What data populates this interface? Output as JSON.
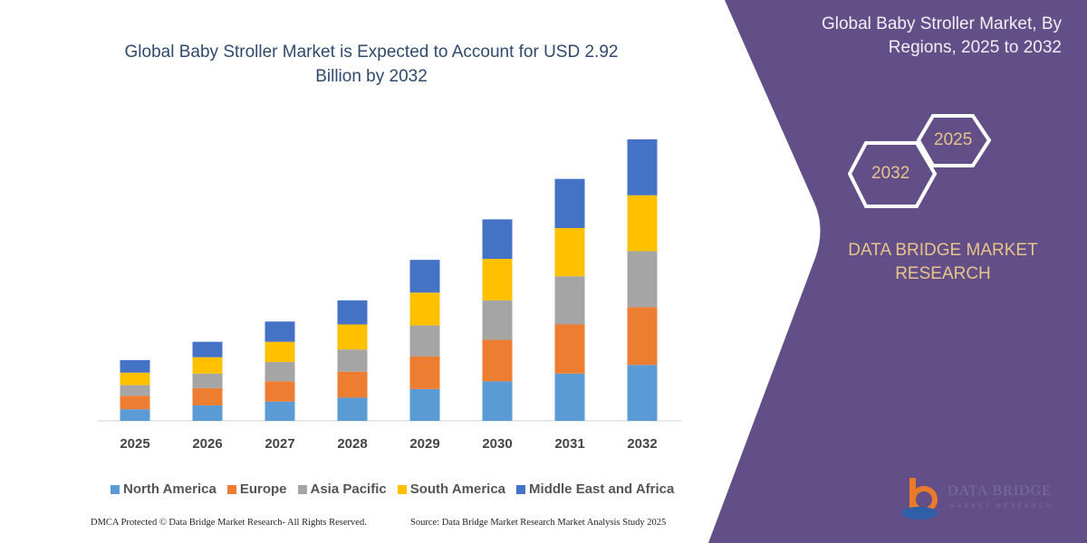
{
  "chart_data": {
    "type": "bar",
    "stacked": true,
    "title": "Global Baby Stroller Market is Expected to Account for USD 2.92 Billion by 2032",
    "xlabel": "",
    "ylabel": "",
    "y_axis_shown": false,
    "grid": false,
    "legend_position": "bottom",
    "categories": [
      "2025",
      "2026",
      "2027",
      "2028",
      "2029",
      "2030",
      "2031",
      "2032"
    ],
    "series": [
      {
        "name": "North America",
        "color": "#5b9bd5",
        "values": [
          0.12,
          0.16,
          0.2,
          0.24,
          0.33,
          0.41,
          0.49,
          0.58
        ]
      },
      {
        "name": "Europe",
        "color": "#ed7d31",
        "values": [
          0.14,
          0.18,
          0.21,
          0.27,
          0.34,
          0.43,
          0.51,
          0.6
        ]
      },
      {
        "name": "Asia Pacific",
        "color": "#a5a5a5",
        "values": [
          0.11,
          0.15,
          0.2,
          0.23,
          0.32,
          0.41,
          0.5,
          0.58
        ]
      },
      {
        "name": "South America",
        "color": "#ffc000",
        "values": [
          0.13,
          0.17,
          0.21,
          0.26,
          0.34,
          0.43,
          0.5,
          0.58
        ]
      },
      {
        "name": "Middle East and Africa",
        "color": "#4472c4",
        "values": [
          0.13,
          0.16,
          0.21,
          0.25,
          0.34,
          0.41,
          0.51,
          0.58
        ]
      }
    ]
  },
  "side_panel": {
    "title": "Global Baby Stroller Market, By Regions, 2025 to 2032",
    "hex_start": "2025",
    "hex_end": "2032",
    "brand": "DATA BRIDGE MARKET RESEARCH",
    "color": "#634f88",
    "logo_text": "DATA BRIDGE",
    "logo_sub": "MARKET RESEARCH"
  },
  "footer": {
    "copyright": "DMCA Protected © Data Bridge Market Research- All Rights Reserved.",
    "source": "Source: Data Bridge Market Research Market Analysis Study 2025"
  }
}
